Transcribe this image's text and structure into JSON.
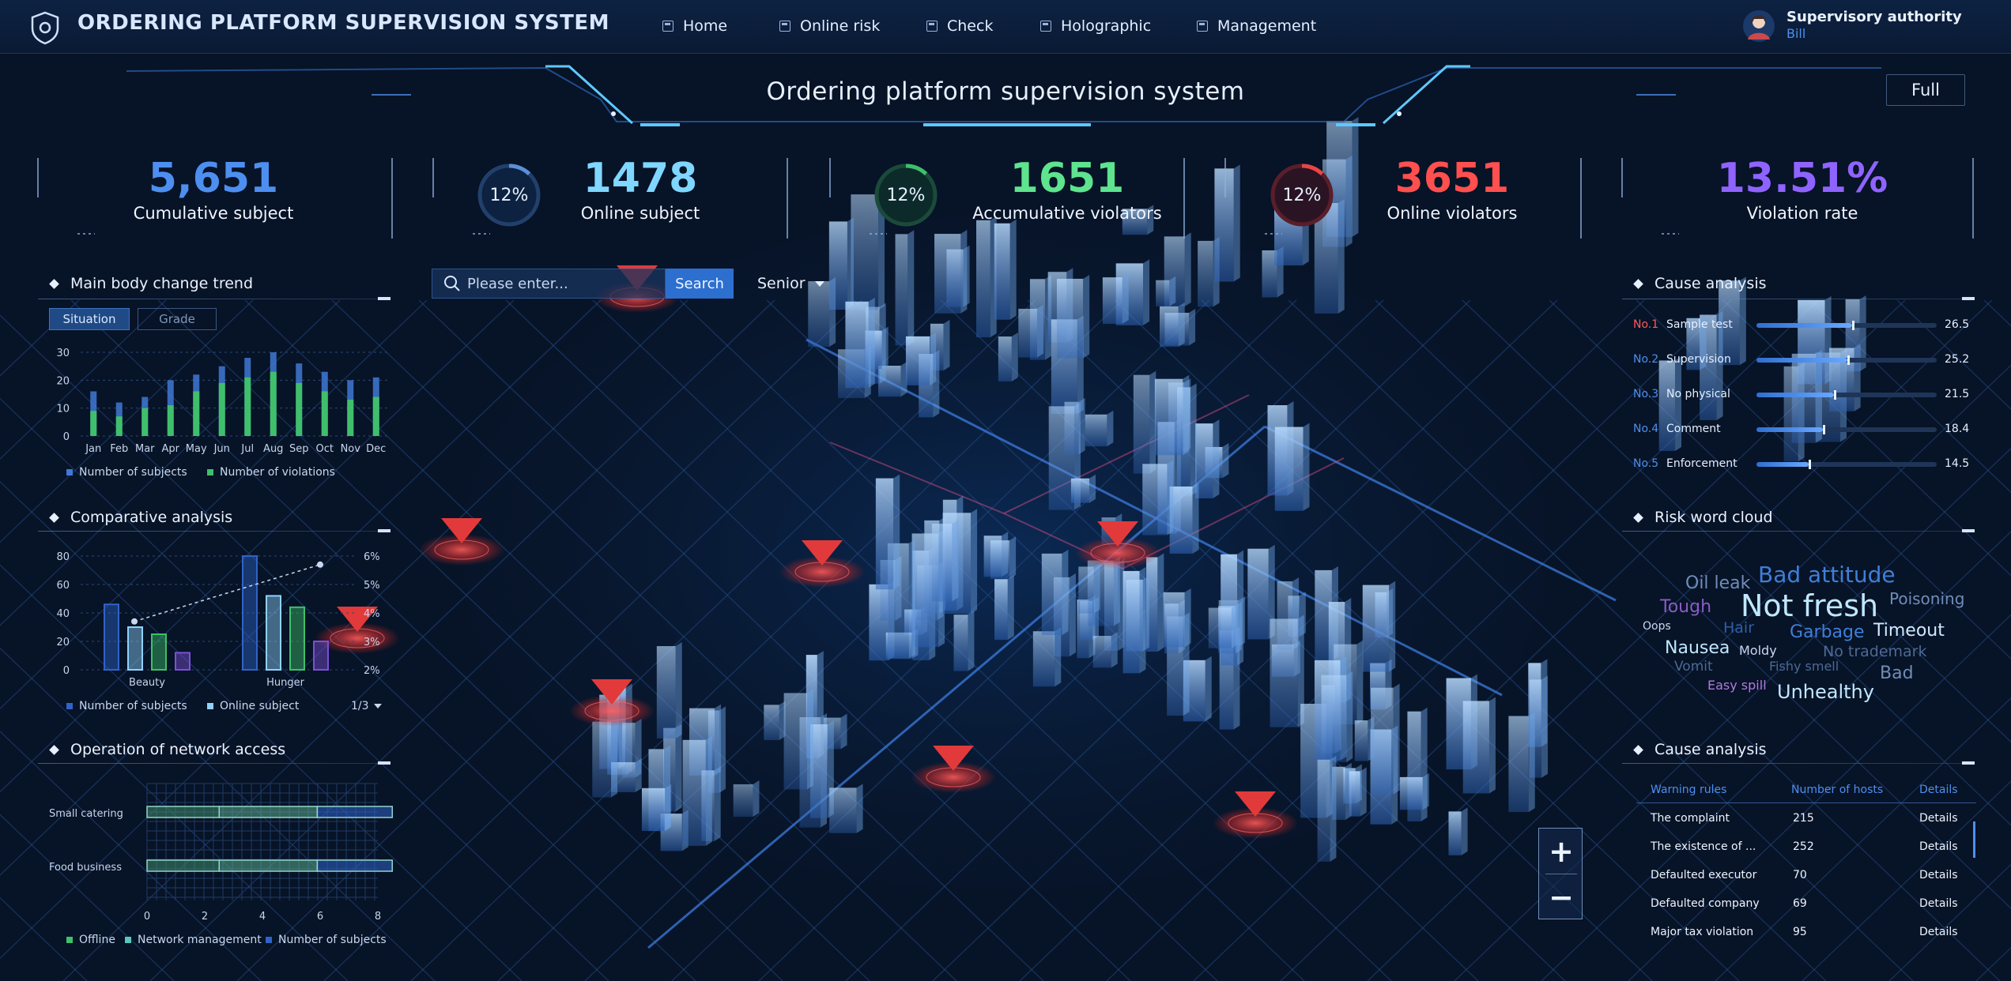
{
  "header": {
    "title": "ORDERING PLATFORM SUPERVISION SYSTEM",
    "nav": [
      {
        "label": "Home",
        "icon": "home-icon"
      },
      {
        "label": "Online risk",
        "icon": "chart-icon"
      },
      {
        "label": "Check",
        "icon": "check-icon"
      },
      {
        "label": "Holographic",
        "icon": "grid-icon"
      },
      {
        "label": "Management",
        "icon": "folder-icon"
      }
    ],
    "user": {
      "role": "Supervisory authority",
      "name": "Bill"
    }
  },
  "banner": {
    "title": "Ordering platform supervision system",
    "full_label": "Full"
  },
  "kpis": [
    {
      "value": "5,651",
      "label": "Cumulative subject",
      "color": "#4d8ff0"
    },
    {
      "value": "1478",
      "label": "Online subject",
      "color": "#7fd6ff",
      "ring": "12%",
      "ring_color": "#5b8fd8"
    },
    {
      "value": "1651",
      "label": "Accumulative violators",
      "color": "#5ee38e",
      "ring": "12%",
      "ring_color": "#3fbf6b"
    },
    {
      "value": "3651",
      "label": "Online violators",
      "color": "#ff4f4f",
      "ring": "12%",
      "ring_color": "#e84545"
    },
    {
      "value": "13.51%",
      "label": "Violation rate",
      "color": "#8f63ff"
    }
  ],
  "panels": {
    "trend_title": "Main body change trend",
    "trend_tabs": [
      "Situation",
      "Grade"
    ],
    "comparative_title": "Comparative analysis",
    "network_title": "Operation of network access",
    "cause_title": "Cause analysis",
    "cloud_title": "Risk word cloud",
    "cause_table_title": "Cause analysis"
  },
  "search": {
    "placeholder": "Please enter...",
    "button": "Search",
    "senior": "Senior"
  },
  "chart_data": [
    {
      "type": "bar",
      "title": "Main body change trend",
      "categories": [
        "Jan",
        "Feb",
        "Mar",
        "Apr",
        "May",
        "Jun",
        "Jul",
        "Aug",
        "Sep",
        "Oct",
        "Nov",
        "Dec"
      ],
      "ylim": [
        0,
        30
      ],
      "yticks": [
        0,
        10,
        20,
        30
      ],
      "series": [
        {
          "name": "Number of subjects",
          "values": [
            16,
            12,
            14,
            20,
            22,
            25,
            28,
            30,
            26,
            23,
            20,
            21
          ],
          "color": "#3f79d6"
        },
        {
          "name": "Number of violations",
          "values": [
            9,
            7,
            10,
            11,
            16,
            19,
            21,
            23,
            19,
            16,
            13,
            14
          ],
          "color": "#3fbf6b"
        }
      ],
      "legend": "bottom"
    },
    {
      "type": "bar",
      "title": "Comparative analysis",
      "categories": [
        "Beauty",
        "Hunger"
      ],
      "ylim": [
        0,
        80
      ],
      "yticks": [
        0,
        20,
        40,
        60,
        80
      ],
      "y2ticks": [
        "2%",
        "3%",
        "4%",
        "5%",
        "6%"
      ],
      "series": [
        {
          "name": "Number of subjects",
          "values": [
            46,
            80
          ],
          "color": "#2f63c8"
        },
        {
          "name": "Online subject",
          "values": [
            30,
            52
          ],
          "color": "#8fd2ff"
        },
        {
          "name": "",
          "values": [
            25,
            44
          ],
          "color": "#3fbf6b"
        },
        {
          "name": "",
          "values": [
            12,
            20
          ],
          "color": "#7c4fd8"
        }
      ],
      "line": {
        "values": [
          "3.7%",
          "5.7%"
        ]
      },
      "pager": "1/3",
      "legend": "bottom"
    },
    {
      "type": "bar",
      "title": "Operation of network access",
      "orientation": "horizontal",
      "categories": [
        "Small catering",
        "Food business"
      ],
      "xlim": [
        0,
        8
      ],
      "xticks": [
        0,
        2,
        4,
        6,
        8
      ],
      "series": [
        {
          "name": "Offline",
          "values": [
            2.5,
            2.5
          ],
          "color": "#3f8a6a"
        },
        {
          "name": "Network management",
          "values": [
            3.4,
            3.4
          ],
          "color": "#5aa88a"
        },
        {
          "name": "Number of subjects",
          "values": [
            2.6,
            2.6
          ],
          "color": "#2f63c8"
        }
      ],
      "legend": "bottom"
    },
    {
      "type": "bar",
      "title": "Cause analysis",
      "orientation": "horizontal",
      "categories": [
        "Sample test",
        "Supervision",
        "No physical",
        "Comment",
        "Enforcement"
      ],
      "ranks": [
        "No.1",
        "No.2",
        "No.3",
        "No.4",
        "No.5"
      ],
      "values": [
        26.5,
        25.2,
        21.5,
        18.4,
        14.5
      ],
      "xlim": [
        0,
        50
      ]
    }
  ],
  "word_cloud": [
    {
      "text": "Oil leak",
      "size": 22,
      "color": "#6f8db8"
    },
    {
      "text": "Bad attitude",
      "size": 28,
      "color": "#3f7fd8"
    },
    {
      "text": "Tough",
      "size": 22,
      "color": "#8a5cc4"
    },
    {
      "text": "Not fresh",
      "size": 38,
      "color": "#bfe8ff"
    },
    {
      "text": "Poisoning",
      "size": 20,
      "color": "#6f8db8"
    },
    {
      "text": "Oops",
      "size": 14,
      "color": "#c9d7ef"
    },
    {
      "text": "Hair",
      "size": 19,
      "color": "#2f5fa8"
    },
    {
      "text": "Garbage",
      "size": 22,
      "color": "#3f7fd8"
    },
    {
      "text": "Timeout",
      "size": 22,
      "color": "#cfe9ff"
    },
    {
      "text": "Nausea",
      "size": 22,
      "color": "#bfe8ff"
    },
    {
      "text": "Moldy",
      "size": 16,
      "color": "#c9d7ef"
    },
    {
      "text": "No trademark",
      "size": 19,
      "color": "#4c6a96"
    },
    {
      "text": "Vomit",
      "size": 17,
      "color": "#4c6a96"
    },
    {
      "text": "Fishy smell",
      "size": 16,
      "color": "#4c6a96"
    },
    {
      "text": "Bad",
      "size": 22,
      "color": "#6f8db8"
    },
    {
      "text": "Easy spill",
      "size": 16,
      "color": "#b07ae0"
    },
    {
      "text": "Unhealthy",
      "size": 24,
      "color": "#bfe8ff"
    }
  ],
  "cause_table": {
    "headers": [
      "Warning rules",
      "Number of hosts",
      "Details"
    ],
    "rows": [
      {
        "rule": "The complaint",
        "hosts": "215",
        "details": "Details"
      },
      {
        "rule": "The existence of ...",
        "hosts": "252",
        "details": "Details"
      },
      {
        "rule": "Defaulted executor",
        "hosts": "70",
        "details": "Details"
      },
      {
        "rule": "Defaulted company",
        "hosts": "69",
        "details": "Details"
      },
      {
        "rule": "Major tax violation",
        "hosts": "95",
        "details": "Details"
      }
    ]
  },
  "zoom": {
    "in": "+",
    "out": "−"
  },
  "colors": {
    "accent": "#4d8ff0",
    "alert": "#e84545",
    "green": "#3fbf6b",
    "background": "#071326"
  }
}
